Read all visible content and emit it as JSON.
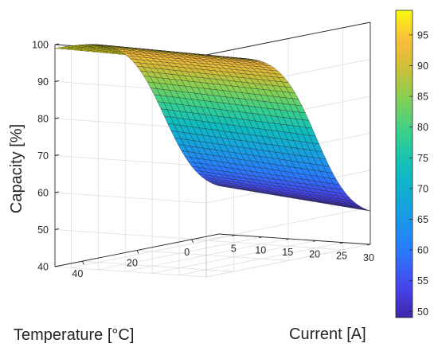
{
  "chart_data": {
    "type": "surface",
    "title": "",
    "xlabel": "Current [A]",
    "ylabel": "Temperature [°C]",
    "zlabel": "Capacity [%]",
    "x_ticks": [
      5,
      10,
      15,
      20,
      25,
      30
    ],
    "y_ticks": [
      0,
      20,
      40
    ],
    "z_ticks": [
      40,
      50,
      60,
      70,
      80,
      90,
      100
    ],
    "xlim": [
      2,
      30
    ],
    "ylim": [
      -10,
      50
    ],
    "zlim": [
      40,
      100
    ],
    "colorbar_ticks": [
      50,
      55,
      60,
      65,
      70,
      75,
      80,
      85,
      90,
      95
    ],
    "colorbar_range": [
      49,
      99
    ],
    "colormap": "parula",
    "grid": true,
    "surface_model": {
      "x_range": [
        2,
        30
      ],
      "y_range": [
        -10,
        50
      ],
      "corner_values": {
        "low_current_low_temp": 53,
        "low_current_high_temp": 99,
        "high_current_low_temp": 49,
        "high_current_high_temp": 98
      },
      "temperature_transition_center": 10,
      "temperature_transition_width": 7
    }
  }
}
